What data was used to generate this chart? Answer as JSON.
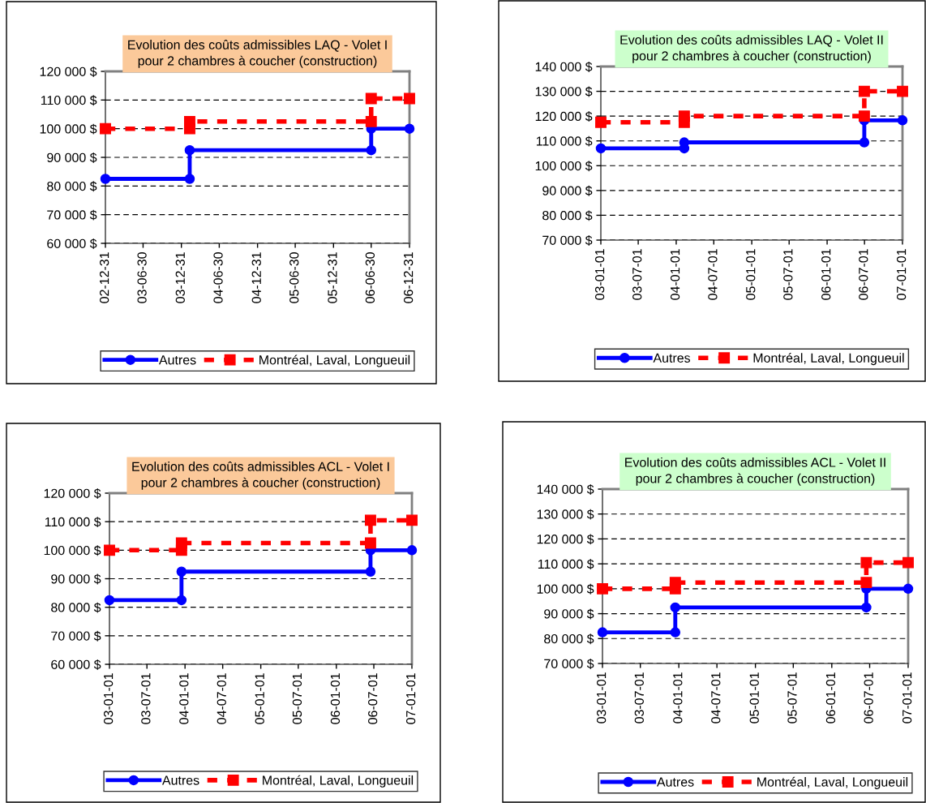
{
  "chart_data": [
    {
      "type": "line",
      "title": "Evolution des coûts admissibles LAQ - Volet I\npour 2 chambres à coucher (construction)",
      "series": [
        {
          "name": "Autres",
          "color": "#0000ff",
          "marker": "circle",
          "line_style": "solid",
          "x": [
            "2002-12-31",
            "2004-02-09",
            "2004-02-09",
            "2006-06-30",
            "2006-06-30",
            "2006-12-31"
          ],
          "values": [
            82500,
            82500,
            92500,
            92500,
            100000,
            100000
          ]
        },
        {
          "name": "Montréal, Laval, Longueuil",
          "color": "#ff0000",
          "marker": "square",
          "line_style": "dashed",
          "x": [
            "2002-12-31",
            "2004-02-09",
            "2004-02-09",
            "2006-06-30",
            "2006-06-30",
            "2006-12-31"
          ],
          "values": [
            100000,
            100000,
            102500,
            102500,
            110500,
            110500
          ]
        }
      ],
      "xlim": [
        "2002-12-31",
        "2006-12-31"
      ],
      "xticks": [
        {
          "value": "2002-12-31",
          "label": "02-12-31"
        },
        {
          "value": "2003-06-30",
          "label": "03-06-30"
        },
        {
          "value": "2003-12-31",
          "label": "03-12-31"
        },
        {
          "value": "2004-06-30",
          "label": "04-06-30"
        },
        {
          "value": "2004-12-31",
          "label": "04-12-31"
        },
        {
          "value": "2005-06-30",
          "label": "05-06-30"
        },
        {
          "value": "2005-12-31",
          "label": "05-12-31"
        },
        {
          "value": "2006-06-30",
          "label": "06-06-30"
        },
        {
          "value": "2006-12-31",
          "label": "06-12-31"
        }
      ],
      "ylim": [
        60000,
        120000
      ],
      "yticks": [
        {
          "value": 60000,
          "label": "60 000 $"
        },
        {
          "value": 70000,
          "label": "70 000 $"
        },
        {
          "value": 80000,
          "label": "80 000 $"
        },
        {
          "value": 90000,
          "label": "90 000 $"
        },
        {
          "value": 100000,
          "label": "100 000 $"
        },
        {
          "value": 110000,
          "label": "110 000 $"
        },
        {
          "value": 120000,
          "label": "120 000 $"
        }
      ],
      "grid": "y",
      "legend": "bottom"
    },
    {
      "type": "line",
      "title": "Evolution des coûts admissibles LAQ - Volet II\npour 2 chambres à coucher (construction)",
      "series": [
        {
          "name": "Autres",
          "color": "#0000ff",
          "marker": "circle",
          "line_style": "solid",
          "x": [
            "2003-01-01",
            "2004-02-09",
            "2004-02-09",
            "2006-06-30",
            "2006-06-30",
            "2007-01-01"
          ],
          "values": [
            107000,
            107000,
            109400,
            109400,
            118300,
            118300
          ]
        },
        {
          "name": "Montréal, Laval, Longueuil",
          "color": "#ff0000",
          "marker": "square",
          "line_style": "dashed",
          "x": [
            "2003-01-01",
            "2004-02-09",
            "2004-02-09",
            "2006-06-30",
            "2006-06-30",
            "2007-01-01"
          ],
          "values": [
            117500,
            117500,
            120000,
            120000,
            130000,
            130000
          ]
        }
      ],
      "xlim": [
        "2003-01-01",
        "2007-01-01"
      ],
      "xticks": [
        {
          "value": "2003-01-01",
          "label": "03-01-01"
        },
        {
          "value": "2003-07-01",
          "label": "03-07-01"
        },
        {
          "value": "2004-01-01",
          "label": "04-01-01"
        },
        {
          "value": "2004-07-01",
          "label": "04-07-01"
        },
        {
          "value": "2005-01-01",
          "label": "05-01-01"
        },
        {
          "value": "2005-07-01",
          "label": "05-07-01"
        },
        {
          "value": "2006-01-01",
          "label": "06-01-01"
        },
        {
          "value": "2006-07-01",
          "label": "06-07-01"
        },
        {
          "value": "2007-01-01",
          "label": "07-01-01"
        }
      ],
      "ylim": [
        70000,
        140000
      ],
      "yticks": [
        {
          "value": 70000,
          "label": "70 000 $"
        },
        {
          "value": 80000,
          "label": "80 000 $"
        },
        {
          "value": 90000,
          "label": "90 000 $"
        },
        {
          "value": 100000,
          "label": "100 000 $"
        },
        {
          "value": 110000,
          "label": "110 000 $"
        },
        {
          "value": 120000,
          "label": "120 000 $"
        },
        {
          "value": 130000,
          "label": "130 000 $"
        },
        {
          "value": 140000,
          "label": "140 000 $"
        }
      ],
      "grid": "y",
      "legend": "bottom"
    },
    {
      "type": "line",
      "title": "Evolution des coûts admissibles ACL - Volet I\npour 2 chambres à coucher (construction)",
      "series": [
        {
          "name": "Autres",
          "color": "#0000ff",
          "marker": "circle",
          "line_style": "solid",
          "x": [
            "2003-01-01",
            "2003-12-15",
            "2003-12-15",
            "2006-06-15",
            "2006-06-15",
            "2007-01-01"
          ],
          "values": [
            82500,
            82500,
            92500,
            92500,
            100000,
            100000
          ]
        },
        {
          "name": "Montréal, Laval, Longueuil",
          "color": "#ff0000",
          "marker": "square",
          "line_style": "dashed",
          "x": [
            "2003-01-01",
            "2003-12-15",
            "2003-12-15",
            "2006-06-15",
            "2006-06-15",
            "2007-01-01"
          ],
          "values": [
            100000,
            100000,
            102500,
            102500,
            110500,
            110500
          ]
        }
      ],
      "xlim": [
        "2003-01-01",
        "2007-01-01"
      ],
      "xticks": [
        {
          "value": "2003-01-01",
          "label": "03-01-01"
        },
        {
          "value": "2003-07-01",
          "label": "03-07-01"
        },
        {
          "value": "2004-01-01",
          "label": "04-01-01"
        },
        {
          "value": "2004-07-01",
          "label": "04-07-01"
        },
        {
          "value": "2005-01-01",
          "label": "05-01-01"
        },
        {
          "value": "2005-07-01",
          "label": "05-07-01"
        },
        {
          "value": "2006-01-01",
          "label": "06-01-01"
        },
        {
          "value": "2006-07-01",
          "label": "06-07-01"
        },
        {
          "value": "2007-01-01",
          "label": "07-01-01"
        }
      ],
      "ylim": [
        60000,
        120000
      ],
      "yticks": [
        {
          "value": 60000,
          "label": "60 000 $"
        },
        {
          "value": 70000,
          "label": "70 000 $"
        },
        {
          "value": 80000,
          "label": "80 000 $"
        },
        {
          "value": 90000,
          "label": "90 000 $"
        },
        {
          "value": 100000,
          "label": "100 000 $"
        },
        {
          "value": 110000,
          "label": "110 000 $"
        },
        {
          "value": 120000,
          "label": "120 000 $"
        }
      ],
      "grid": "y",
      "legend": "bottom"
    },
    {
      "type": "line",
      "title": "Evolution des coûts admissibles ACL - Volet II\npour 2 chambres à coucher (construction)",
      "series": [
        {
          "name": "Autres",
          "color": "#0000ff",
          "marker": "circle",
          "line_style": "solid",
          "x": [
            "2003-01-01",
            "2003-12-15",
            "2003-12-15",
            "2006-06-15",
            "2006-06-15",
            "2007-01-01"
          ],
          "values": [
            82500,
            82500,
            92500,
            92500,
            100000,
            100000
          ]
        },
        {
          "name": "Montréal, Laval, Longueuil",
          "color": "#ff0000",
          "marker": "square",
          "line_style": "dashed",
          "x": [
            "2003-01-01",
            "2003-12-15",
            "2003-12-15",
            "2006-06-15",
            "2006-06-15",
            "2007-01-01"
          ],
          "values": [
            100000,
            100000,
            102500,
            102500,
            110500,
            110500
          ]
        }
      ],
      "xlim": [
        "2003-01-01",
        "2007-01-01"
      ],
      "xticks": [
        {
          "value": "2003-01-01",
          "label": "03-01-01"
        },
        {
          "value": "2003-07-01",
          "label": "03-07-01"
        },
        {
          "value": "2004-01-01",
          "label": "04-01-01"
        },
        {
          "value": "2004-07-01",
          "label": "04-07-01"
        },
        {
          "value": "2005-01-01",
          "label": "05-01-01"
        },
        {
          "value": "2005-07-01",
          "label": "05-07-01"
        },
        {
          "value": "2006-01-01",
          "label": "06-01-01"
        },
        {
          "value": "2006-07-01",
          "label": "06-07-01"
        },
        {
          "value": "2007-01-01",
          "label": "07-01-01"
        }
      ],
      "ylim": [
        70000,
        140000
      ],
      "yticks": [
        {
          "value": 70000,
          "label": "70 000 $"
        },
        {
          "value": 80000,
          "label": "80 000 $"
        },
        {
          "value": 90000,
          "label": "90 000 $"
        },
        {
          "value": 100000,
          "label": "100 000 $"
        },
        {
          "value": 110000,
          "label": "110 000 $"
        },
        {
          "value": 120000,
          "label": "120 000 $"
        },
        {
          "value": 130000,
          "label": "130 000 $"
        },
        {
          "value": 140000,
          "label": "140 000 $"
        }
      ],
      "grid": "y",
      "legend": "bottom"
    }
  ]
}
